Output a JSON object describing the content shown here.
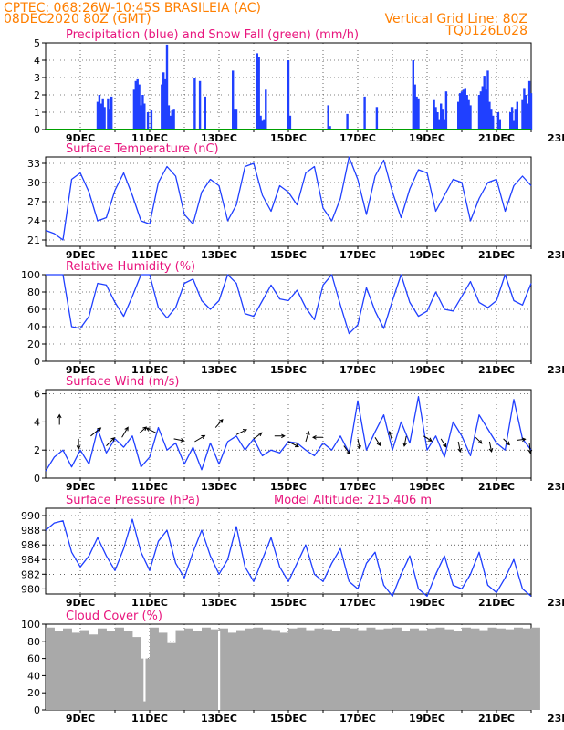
{
  "header": {
    "line1_left": "CPTEC:    068:26W-10:45S   BRASILEIA (AC)",
    "line2_left": "08DEC2020 80Z (GMT)",
    "line2_right": "Vertical Grid Line: 80Z",
    "line3_right": "TQ0126L028"
  },
  "x_ticks": [
    "9DEC",
    "11DEC",
    "13DEC",
    "15DEC",
    "17DEC",
    "19DEC",
    "21DEC",
    "23DEC"
  ],
  "colors": {
    "series": "#1f3fff",
    "bar": "#2040ff",
    "snow": "#00a000",
    "cloud": "#a9a9a9",
    "title": "#e8157d",
    "header": "#ff7f00"
  },
  "chart_data": [
    {
      "type": "bar",
      "title": "Precipitation (blue) and Snow Fall (green) (mm/h)",
      "ylim": [
        0,
        5
      ],
      "yticks": [
        0,
        1,
        2,
        3,
        4,
        5
      ],
      "series": [
        {
          "name": "Precipitation",
          "x": [
            1.5,
            1.55,
            1.6,
            1.65,
            1.7,
            1.8,
            1.85,
            1.9,
            2.55,
            2.6,
            2.65,
            2.7,
            2.75,
            2.8,
            2.85,
            2.95,
            3.05,
            3.35,
            3.4,
            3.45,
            3.5,
            3.55,
            3.6,
            3.65,
            3.7,
            4.3,
            4.45,
            4.6,
            5.4,
            5.45,
            5.5,
            6.1,
            6.15,
            6.2,
            6.25,
            6.3,
            6.35,
            7.0,
            7.05,
            8.15,
            8.2,
            8.7,
            9.2,
            9.55,
            10.6,
            10.65,
            10.7,
            10.75,
            11.2,
            11.25,
            11.3,
            11.35,
            11.4,
            11.45,
            11.5,
            11.55,
            11.9,
            11.95,
            12.0,
            12.05,
            12.1,
            12.15,
            12.2,
            12.25,
            12.5,
            12.55,
            12.6,
            12.65,
            12.7,
            12.75,
            12.8,
            12.85,
            12.9,
            13.05,
            13.1,
            13.4,
            13.45,
            13.5,
            13.55,
            13.6,
            13.75,
            13.8,
            13.85,
            13.9,
            13.95,
            14.0
          ],
          "values": [
            1.6,
            2.0,
            1.5,
            1.8,
            1.3,
            1.8,
            1.2,
            1.9,
            2.3,
            2.8,
            2.9,
            2.6,
            1.4,
            2.0,
            1.5,
            1.0,
            1.1,
            2.6,
            3.3,
            2.9,
            4.9,
            1.4,
            0.8,
            1.1,
            1.2,
            3.0,
            2.8,
            1.9,
            3.4,
            1.2,
            1.2,
            4.4,
            4.2,
            0.8,
            0.5,
            0.6,
            2.3,
            4.0,
            0.8,
            1.4,
            0.2,
            0.9,
            1.9,
            1.3,
            4.0,
            2.6,
            1.9,
            1.8,
            1.7,
            1.3,
            1.0,
            0.6,
            1.5,
            1.2,
            0.6,
            2.2,
            1.6,
            2.1,
            2.2,
            2.3,
            2.4,
            2.0,
            1.7,
            1.4,
            2.0,
            2.2,
            2.5,
            3.1,
            2.3,
            3.4,
            1.6,
            1.2,
            0.8,
            1.0,
            0.6,
            1.0,
            1.3,
            0.5,
            1.2,
            1.6,
            1.7,
            2.4,
            2.0,
            1.5,
            2.8,
            2.1
          ]
        },
        {
          "name": "Snow Fall",
          "x": [
            0,
            14.0
          ],
          "values": [
            0,
            0
          ]
        }
      ]
    },
    {
      "type": "line",
      "title": "Surface Temperature (nC)",
      "ylim": [
        20,
        34
      ],
      "yticks": [
        21,
        24,
        27,
        30,
        33
      ],
      "series": [
        {
          "name": "",
          "x": [
            0,
            0.25,
            0.5,
            0.75,
            1.0,
            1.25,
            1.5,
            1.75,
            2.0,
            2.25,
            2.5,
            2.75,
            3.0,
            3.25,
            3.5,
            3.75,
            4.0,
            4.25,
            4.5,
            4.75,
            5.0,
            5.25,
            5.5,
            5.75,
            6.0,
            6.25,
            6.5,
            6.75,
            7.0,
            7.25,
            7.5,
            7.75,
            8.0,
            8.25,
            8.5,
            8.75,
            9.0,
            9.25,
            9.5,
            9.75,
            10.0,
            10.25,
            10.5,
            10.75,
            11.0,
            11.25,
            11.5,
            11.75,
            12.0,
            12.25,
            12.5,
            12.75,
            13.0,
            13.25,
            13.5,
            13.75,
            14.0
          ],
          "values": [
            22.5,
            22.0,
            21.0,
            30.5,
            31.5,
            28.5,
            24.0,
            24.5,
            28.8,
            31.5,
            28.0,
            24.0,
            23.5,
            30.0,
            32.5,
            31.0,
            25.0,
            23.5,
            28.5,
            30.5,
            29.5,
            24.0,
            26.5,
            32.5,
            33.0,
            28.0,
            25.5,
            29.5,
            28.5,
            26.5,
            31.5,
            32.5,
            26.0,
            24.0,
            27.5,
            34.0,
            30.5,
            25.0,
            31.0,
            33.5,
            28.5,
            24.5,
            29.0,
            32.0,
            31.5,
            25.5,
            28.0,
            30.5,
            30.0,
            24.0,
            27.5,
            30.0,
            30.5,
            25.5,
            29.5,
            31.0,
            29.5
          ]
        }
      ]
    },
    {
      "type": "line",
      "title": "Relative Humidity (%)",
      "ylim": [
        0,
        100
      ],
      "yticks": [
        0,
        20,
        40,
        60,
        80,
        100
      ],
      "series": [
        {
          "name": "",
          "x": [
            0,
            0.25,
            0.5,
            0.75,
            1.0,
            1.25,
            1.5,
            1.75,
            2.0,
            2.25,
            2.5,
            2.75,
            3.0,
            3.25,
            3.5,
            3.75,
            4.0,
            4.25,
            4.5,
            4.75,
            5.0,
            5.25,
            5.5,
            5.75,
            6.0,
            6.25,
            6.5,
            6.75,
            7.0,
            7.25,
            7.5,
            7.75,
            8.0,
            8.25,
            8.5,
            8.75,
            9.0,
            9.25,
            9.5,
            9.75,
            10.0,
            10.25,
            10.5,
            10.75,
            11.0,
            11.25,
            11.5,
            11.75,
            12.0,
            12.25,
            12.5,
            12.75,
            13.0,
            13.25,
            13.5,
            13.75,
            14.0
          ],
          "values": [
            100,
            100,
            100,
            40,
            38,
            52,
            90,
            88,
            68,
            52,
            75,
            100,
            100,
            62,
            50,
            62,
            90,
            95,
            70,
            60,
            70,
            100,
            90,
            55,
            52,
            70,
            88,
            72,
            70,
            82,
            62,
            48,
            88,
            100,
            65,
            32,
            42,
            85,
            58,
            38,
            70,
            100,
            68,
            52,
            58,
            80,
            60,
            58,
            75,
            92,
            68,
            62,
            70,
            100,
            70,
            65,
            90
          ]
        }
      ]
    },
    {
      "type": "line",
      "title": "Surface Wind (m/s)",
      "ylim": [
        0,
        6.3
      ],
      "yticks": [
        0,
        2,
        4,
        6
      ],
      "series": [
        {
          "name": "",
          "x": [
            0,
            0.25,
            0.5,
            0.75,
            1.0,
            1.25,
            1.5,
            1.75,
            2.0,
            2.25,
            2.5,
            2.75,
            3.0,
            3.25,
            3.5,
            3.75,
            4.0,
            4.25,
            4.5,
            4.75,
            5.0,
            5.25,
            5.5,
            5.75,
            6.0,
            6.25,
            6.5,
            6.75,
            7.0,
            7.25,
            7.5,
            7.75,
            8.0,
            8.25,
            8.5,
            8.75,
            9.0,
            9.25,
            9.5,
            9.75,
            10.0,
            10.25,
            10.5,
            10.75,
            11.0,
            11.25,
            11.5,
            11.75,
            12.0,
            12.25,
            12.5,
            12.75,
            13.0,
            13.25,
            13.5,
            13.75,
            14.0
          ],
          "values": [
            0.5,
            1.5,
            2.0,
            0.8,
            2.0,
            1.0,
            3.5,
            1.8,
            2.8,
            2.2,
            3.0,
            0.8,
            1.5,
            3.6,
            2.0,
            2.5,
            1.0,
            2.2,
            0.6,
            2.5,
            1.0,
            2.6,
            3.0,
            2.0,
            2.8,
            1.6,
            2.0,
            1.8,
            2.6,
            2.5,
            2.0,
            1.6,
            2.5,
            2.0,
            3.0,
            1.8,
            5.5,
            2.0,
            3.3,
            4.5,
            2.0,
            4.0,
            2.5,
            5.8,
            2.0,
            3.0,
            1.5,
            4.0,
            3.0,
            1.6,
            4.5,
            3.5,
            2.5,
            2.0,
            5.6,
            2.8,
            2.0
          ]
        }
      ],
      "arrows": [
        {
          "x": 0.4,
          "y": 3.8,
          "u": 0,
          "v": 1
        },
        {
          "x": 0.95,
          "y": 2.8,
          "u": 0,
          "v": -1
        },
        {
          "x": 1.3,
          "y": 3.0,
          "u": 1,
          "v": 0.8
        },
        {
          "x": 1.75,
          "y": 2.3,
          "u": 0.8,
          "v": 0.8
        },
        {
          "x": 2.2,
          "y": 2.9,
          "u": 0.6,
          "v": 1
        },
        {
          "x": 2.7,
          "y": 3.2,
          "u": 0.7,
          "v": 0.6
        },
        {
          "x": 3.2,
          "y": 3.2,
          "u": -1,
          "v": 0.5
        },
        {
          "x": 3.7,
          "y": 2.8,
          "u": 1,
          "v": -0.2
        },
        {
          "x": 4.3,
          "y": 2.6,
          "u": 1,
          "v": 0.6
        },
        {
          "x": 4.9,
          "y": 3.6,
          "u": 0.7,
          "v": 0.8
        },
        {
          "x": 5.5,
          "y": 3.1,
          "u": 1,
          "v": 0.5
        },
        {
          "x": 6.0,
          "y": 2.8,
          "u": 0.8,
          "v": 0.6
        },
        {
          "x": 6.6,
          "y": 3.0,
          "u": 1,
          "v": 0
        },
        {
          "x": 7.0,
          "y": 2.6,
          "u": 1,
          "v": -0.5
        },
        {
          "x": 7.5,
          "y": 2.6,
          "u": 0.3,
          "v": 1
        },
        {
          "x": 8.0,
          "y": 2.9,
          "u": -1,
          "v": 0
        },
        {
          "x": 8.6,
          "y": 2.3,
          "u": 0.6,
          "v": -0.8
        },
        {
          "x": 9.0,
          "y": 2.8,
          "u": 0.2,
          "v": -1
        },
        {
          "x": 9.5,
          "y": 2.9,
          "u": 0.5,
          "v": -0.8
        },
        {
          "x": 10.0,
          "y": 2.6,
          "u": -0.3,
          "v": 1
        },
        {
          "x": 10.4,
          "y": 3.0,
          "u": -0.2,
          "v": -1
        },
        {
          "x": 10.9,
          "y": 3.0,
          "u": 0.8,
          "v": -0.5
        },
        {
          "x": 11.4,
          "y": 2.8,
          "u": 0.5,
          "v": -0.8
        },
        {
          "x": 11.9,
          "y": 2.6,
          "u": 0.2,
          "v": -1
        },
        {
          "x": 12.4,
          "y": 2.9,
          "u": 0.6,
          "v": -0.6
        },
        {
          "x": 12.8,
          "y": 2.6,
          "u": 0.2,
          "v": -1
        },
        {
          "x": 13.2,
          "y": 2.8,
          "u": 0.6,
          "v": -0.6
        },
        {
          "x": 13.6,
          "y": 2.7,
          "u": 0.8,
          "v": 0.1
        },
        {
          "x": 13.95,
          "y": 2.5,
          "u": 0.1,
          "v": -1
        }
      ]
    },
    {
      "type": "line",
      "title": "Surface Pressure (hPa)",
      "annotation": "Model Altitude: 215.406 m",
      "ylim": [
        979.3,
        991
      ],
      "yticks": [
        980,
        982,
        984,
        986,
        988,
        990
      ],
      "series": [
        {
          "name": "",
          "x": [
            0,
            0.25,
            0.5,
            0.75,
            1.0,
            1.25,
            1.5,
            1.75,
            2.0,
            2.25,
            2.5,
            2.75,
            3.0,
            3.25,
            3.5,
            3.75,
            4.0,
            4.25,
            4.5,
            4.75,
            5.0,
            5.25,
            5.5,
            5.75,
            6.0,
            6.25,
            6.5,
            6.75,
            7.0,
            7.25,
            7.5,
            7.75,
            8.0,
            8.25,
            8.5,
            8.75,
            9.0,
            9.25,
            9.5,
            9.75,
            10.0,
            10.25,
            10.5,
            10.75,
            11.0,
            11.25,
            11.5,
            11.75,
            12.0,
            12.25,
            12.5,
            12.75,
            13.0,
            13.25,
            13.5,
            13.75,
            14.0
          ],
          "values": [
            988.0,
            989.0,
            989.3,
            985.0,
            983.0,
            984.5,
            987.0,
            984.5,
            982.5,
            985.5,
            989.5,
            985.0,
            982.5,
            986.5,
            988.0,
            983.5,
            981.5,
            985.0,
            988.0,
            984.5,
            982.0,
            984.0,
            988.5,
            983.0,
            981.0,
            984.0,
            987.0,
            983.0,
            981.0,
            983.5,
            986.0,
            982.0,
            981.0,
            983.5,
            985.5,
            981.0,
            980.0,
            983.5,
            985.0,
            980.5,
            979.0,
            982.0,
            984.5,
            980.0,
            979.0,
            982.0,
            984.5,
            980.5,
            980.0,
            982.0,
            985.0,
            980.5,
            979.5,
            981.5,
            984.0,
            980.0,
            979.0
          ]
        }
      ]
    },
    {
      "type": "area",
      "title": "Cloud Cover (%)",
      "ylim": [
        0,
        100
      ],
      "yticks": [
        0,
        20,
        40,
        60,
        80,
        100
      ],
      "series": [
        {
          "name": "",
          "x": [
            0,
            0.25,
            0.5,
            0.75,
            1.0,
            1.25,
            1.5,
            1.75,
            2.0,
            2.25,
            2.5,
            2.75,
            3.0,
            3.25,
            3.5,
            3.75,
            4.0,
            4.25,
            4.5,
            4.75,
            5.0,
            5.25,
            5.5,
            5.75,
            6.0,
            6.25,
            6.5,
            6.75,
            7.0,
            7.25,
            7.5,
            7.75,
            8.0,
            8.25,
            8.5,
            8.75,
            9.0,
            9.25,
            9.5,
            9.75,
            10.0,
            10.25,
            10.5,
            10.75,
            11.0,
            11.25,
            11.5,
            11.75,
            12.0,
            12.25,
            12.5,
            12.75,
            13.0,
            13.25,
            13.5,
            13.75,
            14.0
          ],
          "values": [
            96,
            92,
            95,
            90,
            93,
            88,
            95,
            92,
            96,
            92,
            85,
            60,
            96,
            90,
            78,
            93,
            95,
            92,
            96,
            94,
            95,
            90,
            93,
            95,
            96,
            94,
            93,
            90,
            95,
            96,
            93,
            95,
            94,
            92,
            96,
            95,
            93,
            96,
            94,
            95,
            96,
            92,
            95,
            93,
            95,
            96,
            94,
            92,
            96,
            95,
            93,
            96,
            95,
            94,
            96,
            95,
            96
          ],
          "dips": [
            {
              "x": 2.85,
              "value": 10
            },
            {
              "x": 5.0,
              "value": 0
            }
          ]
        }
      ]
    }
  ]
}
